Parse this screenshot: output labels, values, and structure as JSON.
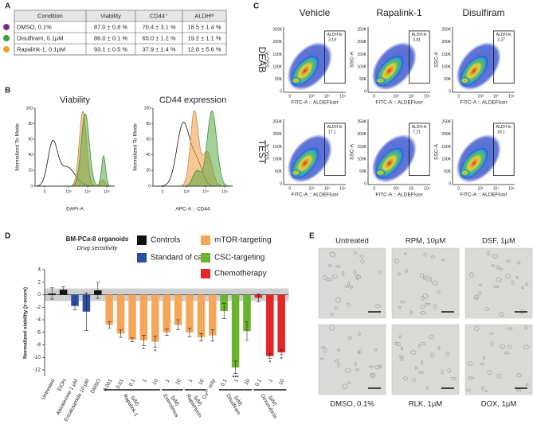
{
  "labels": [
    "A",
    "B",
    "C",
    "D",
    "E"
  ],
  "table": {
    "header": [
      "Condition",
      "Viability",
      "CD44⁺",
      "ALDHʰⁱ"
    ],
    "rows": [
      [
        "DMSO, 0.1%",
        "87.0 ± 0.8 %",
        "70.4 ± 3.1 %",
        "18.5 ± 1.4 %"
      ],
      [
        "Disulfiram, 0.1µM",
        "86.0 ± 0.1 %",
        "65.0 ± 1.2 %",
        "19.2 ± 1.1 %"
      ],
      [
        "Rapalink-1,  0.1µM",
        "93.1 ± 0.5 %",
        "37.9 ± 1.4 %",
        "12.8 ± 5.6 %"
      ]
    ]
  },
  "histograms": {
    "plots": [
      {
        "title": "Viability",
        "xlabel": "DAPI-A"
      },
      {
        "title": "CD44 expression",
        "xlabel": "APC-A :: CD44"
      }
    ],
    "ylabel": "Normalized To Mode",
    "yticks": [
      0,
      20,
      40,
      60,
      80,
      100
    ],
    "xticks": [
      "0",
      "10³",
      "10⁴",
      "10⁵"
    ]
  },
  "flow": {
    "columns": [
      "Vehicle",
      "Rapalink-1",
      "Disulfiram"
    ],
    "rows": [
      "DEAB",
      "TEST"
    ],
    "gate": "ALDH-hi",
    "gate_values": [
      [
        3.19,
        3.81,
        3.27
      ],
      [
        17.1,
        7.21,
        18.1
      ]
    ],
    "ylabel": "SSC-A",
    "xlabel": "FITC-A :: ALDEFluor",
    "yticks": [
      "250K",
      "200K",
      "150K",
      "100K",
      "50K",
      "0"
    ],
    "xticks": [
      "0",
      "10³",
      "10⁴",
      "10⁵"
    ]
  },
  "chart_data": {
    "type": "bar",
    "title": "BM-PCa-8 organoids",
    "subtitle": "Drug sensitivity",
    "ylabel": "Normalized viability (z-score)",
    "categories": [
      "Untreated",
      "EtOH",
      "Abiraterone 1 µM",
      "Enzalutamide 10 µM",
      "DMSO",
      "0.001",
      "0.01",
      "0.1",
      "1",
      "10",
      "1",
      "10",
      "1",
      "10",
      "Cu²⁺ only",
      "0.1",
      "1",
      "10",
      "0.1",
      "1",
      "10"
    ],
    "values": [
      0.2,
      0.8,
      -1.8,
      -2.7,
      0.7,
      -4.8,
      -6.2,
      -7.2,
      -7.3,
      -7.5,
      -6.0,
      -4.8,
      -6.0,
      -6.8,
      -6.5,
      -2.6,
      -11.6,
      -5.8,
      -0.5,
      -9.8,
      -9.2
    ],
    "errors": [
      0.9,
      0.5,
      0.6,
      3.0,
      1.3,
      0.5,
      0.6,
      0.3,
      0.8,
      0.9,
      0.5,
      0.8,
      0.7,
      0.6,
      0.9,
      1.2,
      1.0,
      1.5,
      0.6,
      0.4,
      0.4
    ],
    "colors": [
      "#111111",
      "#111111",
      "#2b4ea2",
      "#2b4ea2",
      "#111111",
      "#f6a65a",
      "#f6a65a",
      "#f6a65a",
      "#f6a65a",
      "#f6a65a",
      "#f6a65a",
      "#f6a65a",
      "#f6a65a",
      "#f6a65a",
      "#f6a65a",
      "#6ab42d",
      "#6ab42d",
      "#6ab42d",
      "#e32626",
      "#e32626",
      "#e32626"
    ],
    "legend": [
      {
        "name": "Controls",
        "color": "#111111"
      },
      {
        "name": "Standard of care",
        "color": "#2b4ea2"
      },
      {
        "name": "mTOR-targeting",
        "color": "#f6a65a"
      },
      {
        "name": "CSC-targeting",
        "color": "#6ab42d"
      },
      {
        "name": "Chemotherapy",
        "color": "#e32626"
      }
    ],
    "groups": [
      {
        "label": "Rapalink-1",
        "unit": "(µM)"
      },
      {
        "label": "Everolimus",
        "unit": "(µM)"
      },
      {
        "label": "Rapamycin",
        "unit": "(µM)"
      },
      {
        "label": "Disulfiram",
        "unit": "(µM)"
      },
      {
        "label": "Doxorubicin",
        "unit": "(µM)"
      }
    ],
    "annotations": [
      "*",
      "*",
      "***",
      "*",
      "*"
    ],
    "ylim": [
      -13,
      4
    ],
    "yticks": [
      4,
      2,
      0,
      -2,
      -4,
      -6,
      -8,
      -10,
      -12
    ]
  },
  "micrographs": {
    "top": [
      "Untreated",
      "RPM, 10µM",
      "DSF, 1µM"
    ],
    "bottom": [
      "DMSO, 0.1%",
      "RLK, 1µM",
      "DOX, 1µM"
    ]
  }
}
